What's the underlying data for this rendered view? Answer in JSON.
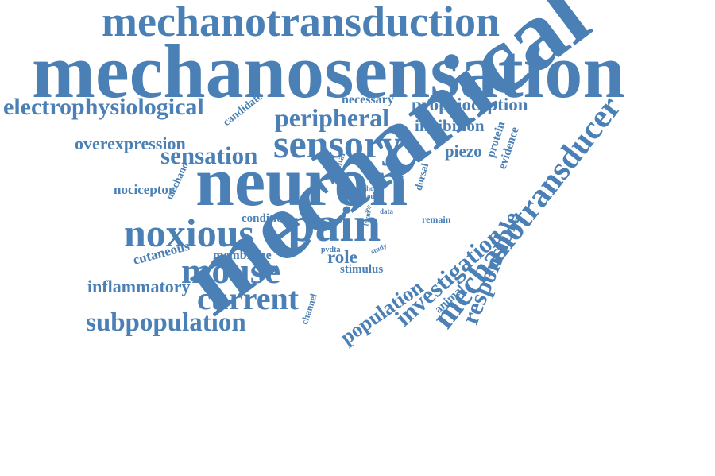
{
  "color": "#4a80b5",
  "words": {
    "mechanotransduction": "mechanotransduction",
    "mechanosensation": "mechanosensation",
    "electrophysiological": "electrophysiological",
    "candidate": "candidate",
    "necessary": "necessary",
    "proprioception": "proprioception",
    "peripheral": "peripheral",
    "inhibition": "inhibition",
    "overexpression": "overexpression",
    "sensory": "sensory",
    "sensation": "sensation",
    "piezo": "piezo",
    "protein": "protein",
    "evidence": "evidence",
    "neuron": "neuron",
    "mechanical": "mechanical",
    "nociceptor": "nociceptor",
    "mechano": "mechano",
    "normal": "normal",
    "horn": "horn",
    "touch": "touch",
    "inhibit": "inhibit",
    "dorsal": "dorsal",
    "cell": "cell",
    "data": "data",
    "remain": "remain",
    "condition": "condition",
    "form": "form",
    "pain": "pain",
    "noxious": "noxious",
    "pvdta": "pvdta",
    "study": "study",
    "role": "role",
    "membrane": "membrane",
    "cutaneous": "cutaneous",
    "stimulus": "stimulus",
    "mouse": "mouse",
    "inflammatory": "inflammatory",
    "current": "current",
    "subpopulation": "subpopulation",
    "channel": "channel",
    "animal": "animal",
    "population": "population",
    "investigation": "investigation",
    "responsible": "responsible",
    "mechanotransducer": "mechanotransducer"
  }
}
